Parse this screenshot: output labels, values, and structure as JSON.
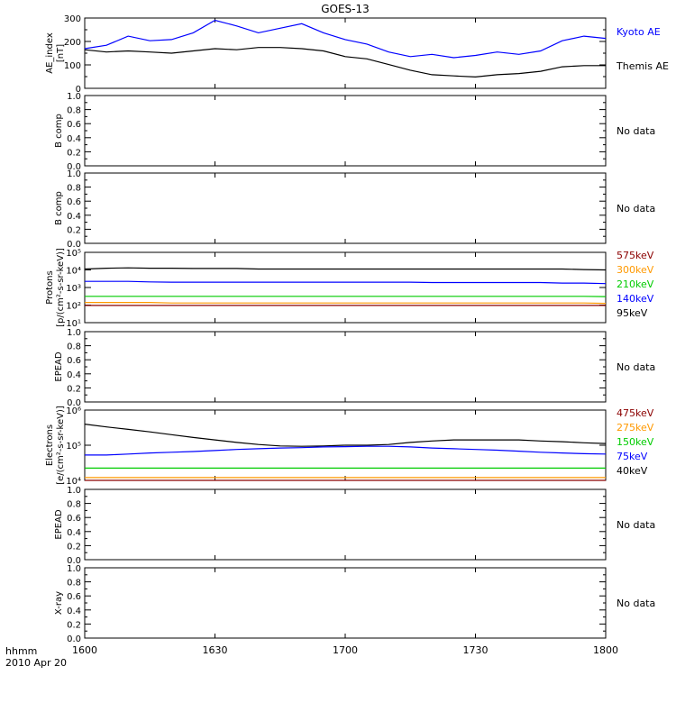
{
  "title": "GOES-13",
  "x_axis": {
    "label_line1": "hhmm",
    "label_line2": "2010 Apr 20",
    "ticks": [
      "1600",
      "1630",
      "1700",
      "1730",
      "1800"
    ],
    "range_minutes": [
      0,
      120
    ]
  },
  "panels": [
    {
      "id": "ae",
      "ylabel_line1": "AE_index",
      "ylabel_line2": "[nT]",
      "tick_labels": [
        "0",
        "100",
        "200",
        "300"
      ],
      "ylim": [
        0,
        310
      ],
      "scale": "linear",
      "legend": [
        {
          "text": "Kyoto AE",
          "color": "#0000ff"
        },
        {
          "text": "Themis AE",
          "color": "#000000"
        }
      ]
    },
    {
      "id": "b1",
      "ylabel_line1": "B comp",
      "ylabel_line2": "",
      "tick_labels": [
        "0.0",
        "0.2",
        "0.4",
        "0.6",
        "0.8",
        "1.0"
      ],
      "ylim": [
        0,
        1
      ],
      "scale": "linear",
      "note": "No data"
    },
    {
      "id": "b2",
      "ylabel_line1": "B comp",
      "ylabel_line2": "",
      "tick_labels": [
        "0.0",
        "0.2",
        "0.4",
        "0.6",
        "0.8",
        "1.0"
      ],
      "ylim": [
        0,
        1
      ],
      "scale": "linear",
      "note": "No data"
    },
    {
      "id": "protons",
      "ylabel_line1": "Protons",
      "ylabel_line2": "[p/(cm²-s-sr-keV)]",
      "tick_labels": [
        "10¹",
        "10²",
        "10³",
        "10⁴",
        "10⁵"
      ],
      "ylim": [
        1,
        5
      ],
      "scale": "log",
      "legend": [
        {
          "text": "575keV",
          "color": "#8b0000"
        },
        {
          "text": "300keV",
          "color": "#ff9900"
        },
        {
          "text": "210keV",
          "color": "#00cc00"
        },
        {
          "text": "140keV",
          "color": "#0000ff"
        },
        {
          "text": "95keV",
          "color": "#000000"
        }
      ]
    },
    {
      "id": "epead1",
      "ylabel_line1": "EPEAD",
      "ylabel_line2": "",
      "tick_labels": [
        "0.0",
        "0.2",
        "0.4",
        "0.6",
        "0.8",
        "1.0"
      ],
      "ylim": [
        0,
        1
      ],
      "scale": "linear",
      "note": "No data"
    },
    {
      "id": "electrons",
      "ylabel_line1": "Electrons",
      "ylabel_line2": "[e/(cm²-s-sr-keV)]",
      "tick_labels": [
        "10⁴",
        "10⁵",
        "10⁶"
      ],
      "ylim": [
        4,
        6
      ],
      "scale": "log",
      "legend": [
        {
          "text": "475keV",
          "color": "#8b0000"
        },
        {
          "text": "275keV",
          "color": "#ff9900"
        },
        {
          "text": "150keV",
          "color": "#00cc00"
        },
        {
          "text": "75keV",
          "color": "#0000ff"
        },
        {
          "text": "40keV",
          "color": "#000000"
        }
      ]
    },
    {
      "id": "epead2",
      "ylabel_line1": "EPEAD",
      "ylabel_line2": "",
      "tick_labels": [
        "0.0",
        "0.2",
        "0.4",
        "0.6",
        "0.8",
        "1.0"
      ],
      "ylim": [
        0,
        1
      ],
      "scale": "linear",
      "note": "No data"
    },
    {
      "id": "xray",
      "ylabel_line1": "X-ray",
      "ylabel_line2": "",
      "tick_labels": [
        "0.0",
        "0.2",
        "0.4",
        "0.6",
        "0.8",
        "1.0"
      ],
      "ylim": [
        0,
        1
      ],
      "scale": "linear",
      "note": "No data"
    }
  ],
  "chart_data": {
    "type": "line",
    "x_minutes_from_1600": [
      0,
      5,
      10,
      15,
      20,
      25,
      30,
      35,
      40,
      45,
      50,
      55,
      60,
      65,
      70,
      75,
      80,
      85,
      90,
      95,
      100,
      105,
      110,
      115,
      120
    ],
    "series": [
      {
        "panel": "ae",
        "name": "Kyoto AE",
        "color": "#0000ff",
        "values": [
          175,
          190,
          230,
          210,
          215,
          245,
          300,
          275,
          245,
          265,
          285,
          245,
          215,
          195,
          160,
          140,
          150,
          135,
          145,
          160,
          150,
          165,
          210,
          230,
          220
        ]
      },
      {
        "panel": "ae",
        "name": "Themis AE",
        "color": "#000000",
        "values": [
          170,
          160,
          165,
          160,
          155,
          165,
          175,
          170,
          180,
          180,
          175,
          165,
          140,
          130,
          105,
          80,
          60,
          55,
          50,
          60,
          65,
          75,
          95,
          100,
          100
        ]
      },
      {
        "panel": "protons",
        "name": "95keV",
        "color": "#000000",
        "values": [
          4.05,
          4.1,
          4.12,
          4.1,
          4.1,
          4.08,
          4.08,
          4.08,
          4.05,
          4.05,
          4.05,
          4.05,
          4.05,
          4.05,
          4.05,
          4.05,
          4.05,
          4.05,
          4.05,
          4.05,
          4.05,
          4.05,
          4.05,
          4.02,
          4.0
        ]
      },
      {
        "panel": "protons",
        "name": "140keV",
        "color": "#0000ff",
        "values": [
          3.35,
          3.35,
          3.35,
          3.32,
          3.3,
          3.3,
          3.3,
          3.3,
          3.3,
          3.3,
          3.3,
          3.3,
          3.3,
          3.3,
          3.3,
          3.3,
          3.28,
          3.28,
          3.28,
          3.28,
          3.28,
          3.28,
          3.25,
          3.25,
          3.22
        ]
      },
      {
        "panel": "protons",
        "name": "210keV",
        "color": "#00cc00",
        "values": [
          2.5,
          2.5,
          2.5,
          2.5,
          2.5,
          2.5,
          2.5,
          2.5,
          2.5,
          2.5,
          2.5,
          2.5,
          2.5,
          2.5,
          2.5,
          2.5,
          2.5,
          2.5,
          2.5,
          2.5,
          2.5,
          2.5,
          2.5,
          2.5,
          2.48
        ]
      },
      {
        "panel": "protons",
        "name": "300keV",
        "color": "#ff9900",
        "values": [
          2.15,
          2.15,
          2.15,
          2.15,
          2.12,
          2.12,
          2.12,
          2.12,
          2.12,
          2.12,
          2.12,
          2.12,
          2.12,
          2.12,
          2.12,
          2.12,
          2.12,
          2.12,
          2.12,
          2.12,
          2.12,
          2.12,
          2.12,
          2.12,
          2.1
        ]
      },
      {
        "panel": "protons",
        "name": "575keV",
        "color": "#8b0000",
        "values": [
          1.98,
          1.98,
          1.98,
          1.98,
          1.98,
          1.98,
          1.98,
          1.98,
          1.98,
          1.98,
          1.98,
          1.98,
          1.98,
          1.98,
          1.98,
          1.98,
          1.98,
          1.98,
          1.98,
          1.98,
          1.98,
          1.98,
          1.98,
          1.98,
          1.98
        ]
      },
      {
        "panel": "electrons",
        "name": "40keV",
        "color": "#000000",
        "values": [
          5.6,
          5.52,
          5.45,
          5.38,
          5.3,
          5.22,
          5.15,
          5.08,
          5.02,
          4.98,
          4.97,
          4.98,
          5.0,
          5.0,
          5.02,
          5.08,
          5.12,
          5.15,
          5.15,
          5.15,
          5.15,
          5.12,
          5.1,
          5.07,
          5.05
        ]
      },
      {
        "panel": "electrons",
        "name": "75keV",
        "color": "#0000ff",
        "values": [
          4.72,
          4.72,
          4.75,
          4.78,
          4.8,
          4.82,
          4.85,
          4.88,
          4.9,
          4.92,
          4.93,
          4.95,
          4.96,
          4.97,
          4.97,
          4.95,
          4.92,
          4.9,
          4.88,
          4.86,
          4.83,
          4.8,
          4.78,
          4.76,
          4.75
        ]
      },
      {
        "panel": "electrons",
        "name": "150keV",
        "color": "#00cc00",
        "values": [
          4.35,
          4.35,
          4.35,
          4.35,
          4.35,
          4.35,
          4.35,
          4.35,
          4.35,
          4.35,
          4.35,
          4.35,
          4.35,
          4.35,
          4.35,
          4.35,
          4.35,
          4.35,
          4.35,
          4.35,
          4.35,
          4.35,
          4.35,
          4.35,
          4.35
        ]
      },
      {
        "panel": "electrons",
        "name": "275keV",
        "color": "#ff9900",
        "values": [
          4.08,
          4.08,
          4.08,
          4.08,
          4.08,
          4.08,
          4.08,
          4.08,
          4.08,
          4.08,
          4.08,
          4.08,
          4.08,
          4.08,
          4.08,
          4.08,
          4.08,
          4.08,
          4.08,
          4.08,
          4.08,
          4.08,
          4.08,
          4.08,
          4.08
        ]
      },
      {
        "panel": "electrons",
        "name": "475keV",
        "color": "#8b0000",
        "values": [
          4.0,
          4.0,
          4.0,
          4.0,
          4.0,
          4.0,
          4.0,
          4.0,
          4.0,
          4.0,
          4.0,
          4.0,
          4.0,
          4.0,
          4.0,
          4.0,
          4.0,
          4.0,
          4.0,
          4.0,
          4.0,
          4.0,
          4.0,
          4.0,
          4.0
        ]
      }
    ]
  }
}
